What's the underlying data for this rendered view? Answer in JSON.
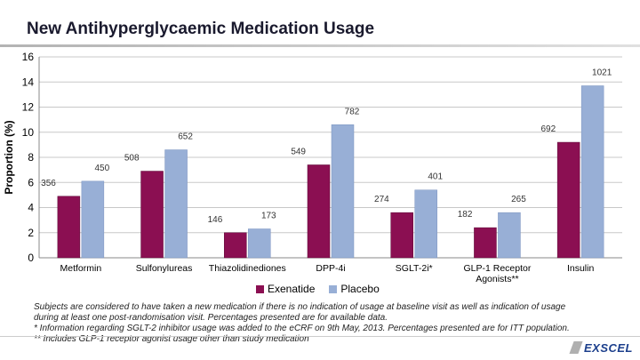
{
  "title": "New Antihyperglycaemic Medication Usage",
  "logo_text": "EXSCEL",
  "footnotes": [
    "Subjects are considered to have taken a new medication if there is no indication of usage at baseline visit as well as indication of usage",
    "during at least one post-randomisation visit. Percentages presented are for available data.",
    "* Information regarding SGLT-2 inhibitor usage was added to the eCRF on 9th May, 2013. Percentages presented are for ITT population.",
    "** Includes GLP-1 receptor agonist usage other than study medication"
  ],
  "colors": {
    "exenatide": "#8b0f52",
    "placebo": "#98afd6"
  },
  "chart_data": {
    "type": "bar",
    "title": "New Antihyperglycaemic Medication Usage",
    "ylabel": "Proportion (%)",
    "xlabel": "",
    "ylim": [
      0,
      16
    ],
    "yticks": [
      "0",
      "2",
      "4",
      "6",
      "8",
      "10",
      "12",
      "14",
      "16"
    ],
    "categories": [
      "Metformin",
      "Sulfonylureas",
      "Thiazolidinediones",
      "DPP-4i",
      "SGLT-2i*",
      "GLP-1 Receptor Agonists**",
      "Insulin"
    ],
    "category_lines": [
      [
        "Metformin"
      ],
      [
        "Sulfonylureas"
      ],
      [
        "Thiazolidinediones"
      ],
      [
        "DPP-4i"
      ],
      [
        "SGLT-2i*"
      ],
      [
        "GLP-1 Receptor",
        "Agonists**"
      ],
      [
        "Insulin"
      ]
    ],
    "legend": [
      "Exenatide",
      "Placebo"
    ],
    "series": [
      {
        "name": "Exenatide",
        "values": [
          4.9,
          6.9,
          2.0,
          7.4,
          3.6,
          2.4,
          9.2
        ],
        "labels": [
          "356",
          "508",
          "146",
          "549",
          "274",
          "182",
          "692"
        ]
      },
      {
        "name": "Placebo",
        "values": [
          6.1,
          8.6,
          2.3,
          10.6,
          5.4,
          3.6,
          13.7
        ],
        "labels": [
          "450",
          "652",
          "173",
          "782",
          "401",
          "265",
          "1021"
        ]
      }
    ]
  }
}
